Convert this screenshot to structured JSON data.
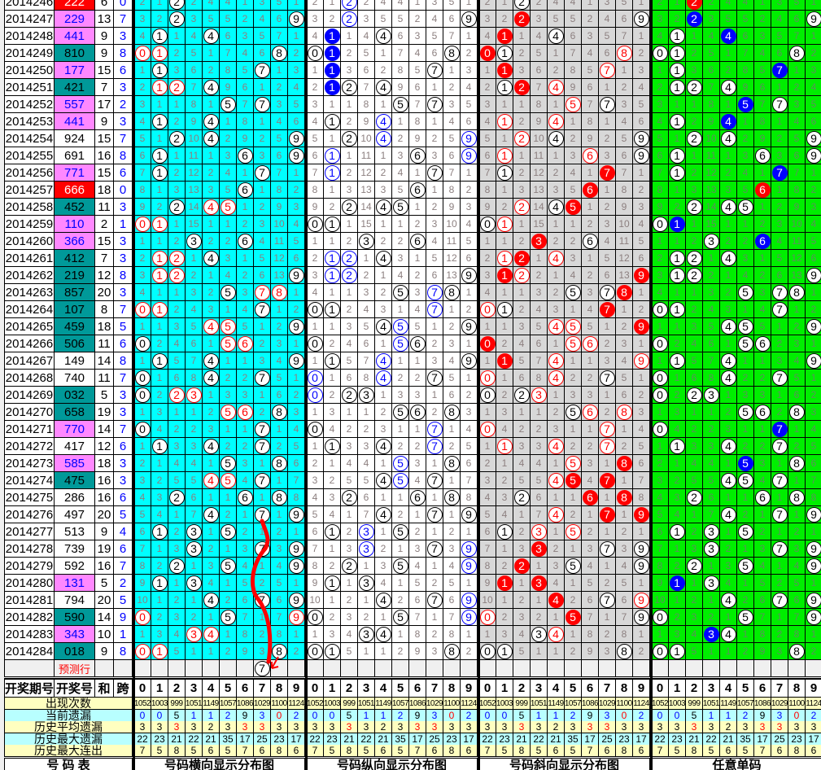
{
  "colors": {
    "panel_horizontal": "#00ffff",
    "panel_vertical": "#ffffff",
    "panel_diagonal": "#d8d8d8",
    "panel_single": "#00ee00",
    "pair_number_bg": "#ff88ff",
    "pair_number_text": "#0000ff",
    "triple_number_bg": "#ff0000",
    "adjacent_number_bg": "#009999",
    "accent_red": "#ff0000",
    "accent_blue": "#0000ff",
    "stat_yellow": "#ffffc0",
    "stat_cyan": "#b8ffff"
  },
  "first_row_omission": [
    2,
    1,
    2,
    2,
    4,
    4,
    1,
    3,
    5,
    1
  ],
  "rows": [
    {
      "period": "2014246",
      "number": "222",
      "sum": "6",
      "span": "0"
    },
    {
      "period": "2014247",
      "number": "229",
      "sum": "13",
      "span": "7"
    },
    {
      "period": "2014248",
      "number": "441",
      "sum": "9",
      "span": "3"
    },
    {
      "period": "2014249",
      "number": "810",
      "sum": "9",
      "span": "8"
    },
    {
      "period": "2014250",
      "number": "177",
      "sum": "15",
      "span": "6"
    },
    {
      "period": "2014251",
      "number": "421",
      "sum": "7",
      "span": "3"
    },
    {
      "period": "2014252",
      "number": "557",
      "sum": "17",
      "span": "2"
    },
    {
      "period": "2014253",
      "number": "441",
      "sum": "9",
      "span": "3"
    },
    {
      "period": "2014254",
      "number": "924",
      "sum": "15",
      "span": "7"
    },
    {
      "period": "2014255",
      "number": "691",
      "sum": "16",
      "span": "8"
    },
    {
      "period": "2014256",
      "number": "771",
      "sum": "15",
      "span": "6"
    },
    {
      "period": "2014257",
      "number": "666",
      "sum": "18",
      "span": "0"
    },
    {
      "period": "2014258",
      "number": "452",
      "sum": "11",
      "span": "3"
    },
    {
      "period": "2014259",
      "number": "110",
      "sum": "2",
      "span": "1"
    },
    {
      "period": "2014260",
      "number": "366",
      "sum": "15",
      "span": "3"
    },
    {
      "period": "2014261",
      "number": "412",
      "sum": "7",
      "span": "3"
    },
    {
      "period": "2014262",
      "number": "219",
      "sum": "12",
      "span": "8"
    },
    {
      "period": "2014263",
      "number": "857",
      "sum": "20",
      "span": "3"
    },
    {
      "period": "2014264",
      "number": "107",
      "sum": "8",
      "span": "7"
    },
    {
      "period": "2014265",
      "number": "459",
      "sum": "18",
      "span": "5"
    },
    {
      "period": "2014266",
      "number": "506",
      "sum": "11",
      "span": "6"
    },
    {
      "period": "2014267",
      "number": "149",
      "sum": "14",
      "span": "8"
    },
    {
      "period": "2014268",
      "number": "740",
      "sum": "11",
      "span": "7"
    },
    {
      "period": "2014269",
      "number": "032",
      "sum": "5",
      "span": "3"
    },
    {
      "period": "2014270",
      "number": "658",
      "sum": "19",
      "span": "3"
    },
    {
      "period": "2014271",
      "number": "770",
      "sum": "14",
      "span": "7"
    },
    {
      "period": "2014272",
      "number": "417",
      "sum": "12",
      "span": "6"
    },
    {
      "period": "2014273",
      "number": "585",
      "sum": "18",
      "span": "3"
    },
    {
      "period": "2014274",
      "number": "475",
      "sum": "16",
      "span": "3"
    },
    {
      "period": "2014275",
      "number": "286",
      "sum": "16",
      "span": "6"
    },
    {
      "period": "2014276",
      "number": "497",
      "sum": "20",
      "span": "5"
    },
    {
      "period": "2014277",
      "number": "513",
      "sum": "9",
      "span": "4"
    },
    {
      "period": "2014278",
      "number": "739",
      "sum": "19",
      "span": "6"
    },
    {
      "period": "2014279",
      "number": "592",
      "sum": "16",
      "span": "7"
    },
    {
      "period": "2014280",
      "number": "131",
      "sum": "5",
      "span": "2"
    },
    {
      "period": "2014281",
      "number": "794",
      "sum": "20",
      "span": "5"
    },
    {
      "period": "2014282",
      "number": "590",
      "sum": "14",
      "span": "9"
    },
    {
      "period": "2014283",
      "number": "343",
      "sum": "10",
      "span": "1"
    },
    {
      "period": "2014284",
      "number": "018",
      "sum": "9",
      "span": "8"
    }
  ],
  "prediction": {
    "label": "预测行",
    "digit": "7"
  },
  "header": {
    "period": "开奖期号",
    "number": "开奖号",
    "sum": "和",
    "span": "跨",
    "digits": [
      "0",
      "1",
      "2",
      "3",
      "4",
      "5",
      "6",
      "7",
      "8",
      "9"
    ]
  },
  "stats": [
    {
      "label": "出现次数",
      "values": [
        "1052",
        "1003",
        "999",
        "1051",
        "1149",
        "1057",
        "1086",
        "1029",
        "1100",
        "1124"
      ],
      "colors": [
        "#000",
        "#000",
        "#000",
        "#000",
        "#000",
        "#000",
        "#000",
        "#000",
        "#000",
        "#000"
      ]
    },
    {
      "label": "当前遗漏",
      "values": [
        "0",
        "0",
        "5",
        "1",
        "1",
        "2",
        "9",
        "3",
        "0",
        "2"
      ],
      "colors": [
        "#0000ff",
        "#0000ff",
        "#000",
        "#0000ff",
        "#0000ff",
        "#0000ff",
        "#000",
        "#0000ff",
        "#ff0000",
        "#0000ff"
      ]
    },
    {
      "label": "历史平均遗漏",
      "values": [
        "3",
        "3",
        "3",
        "3",
        "2",
        "3",
        "3",
        "3",
        "3",
        "3"
      ],
      "colors": [
        "#000",
        "#000",
        "#ff0000",
        "#000",
        "#000",
        "#000",
        "#ff0000",
        "#ff0000",
        "#000",
        "#000"
      ]
    },
    {
      "label": "历史最大遗漏",
      "values": [
        "22",
        "23",
        "21",
        "22",
        "21",
        "35",
        "17",
        "25",
        "23",
        "17"
      ],
      "colors": [
        "#000",
        "#000",
        "#000",
        "#000",
        "#000",
        "#000",
        "#000",
        "#000",
        "#000",
        "#000"
      ]
    },
    {
      "label": "历史最大连出",
      "values": [
        "7",
        "5",
        "8",
        "5",
        "6",
        "5",
        "7",
        "6",
        "8",
        "6"
      ],
      "colors": [
        "#000",
        "#000",
        "#000",
        "#000",
        "#000",
        "#000",
        "#000",
        "#000",
        "#000",
        "#000"
      ]
    }
  ],
  "footer": {
    "table": "号 码 表",
    "panels": [
      "号码横向显示分布图",
      "号码纵向显示分布图",
      "号码斜向显示分布图",
      "任意单码"
    ]
  }
}
